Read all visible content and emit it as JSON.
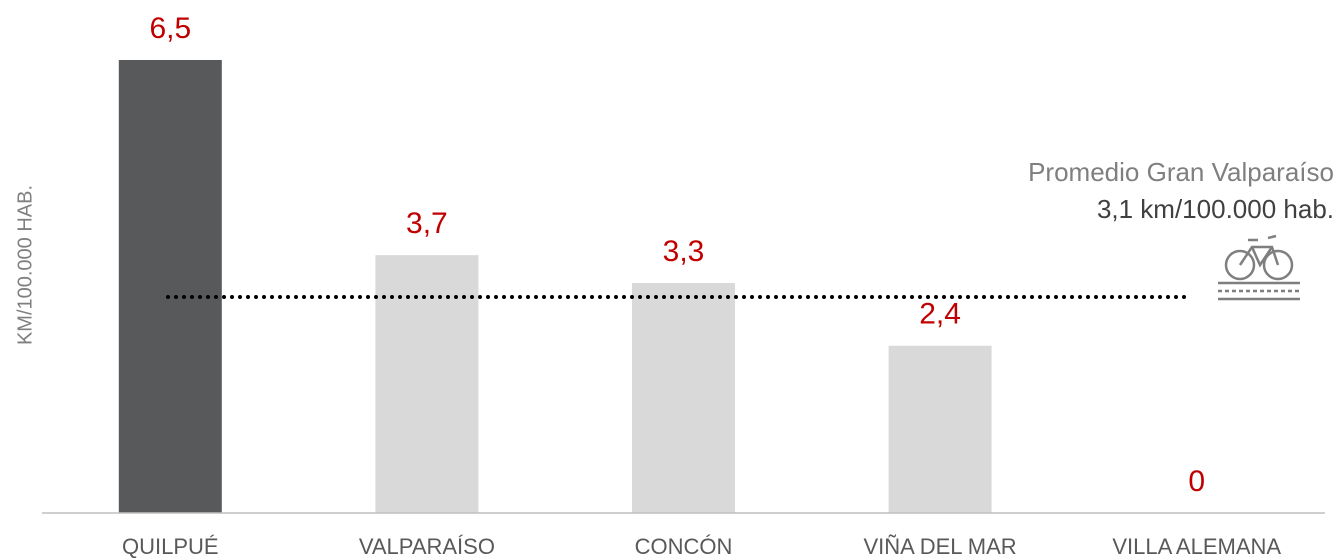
{
  "chart_data": {
    "type": "bar",
    "y_label": "KM/100.000 HAB.",
    "categories": [
      "QUILPUÉ",
      "VALPARAÍSO",
      "CONCÓN",
      "VIÑA DEL MAR",
      "VILLA ALEMANA"
    ],
    "values": [
      6.5,
      3.7,
      3.3,
      2.4,
      0
    ],
    "value_labels": [
      "6,5",
      "3,7",
      "3,3",
      "2,4",
      "0"
    ],
    "colors": [
      "#58595b",
      "#d9d9d9",
      "#d9d9d9",
      "#d9d9d9",
      "#d9d9d9"
    ],
    "ylim": [
      0,
      6.5
    ],
    "reference_line": {
      "value": 3.1,
      "title": "Promedio Gran Valparaíso",
      "label": "3,1 km/100.000 hab."
    }
  }
}
